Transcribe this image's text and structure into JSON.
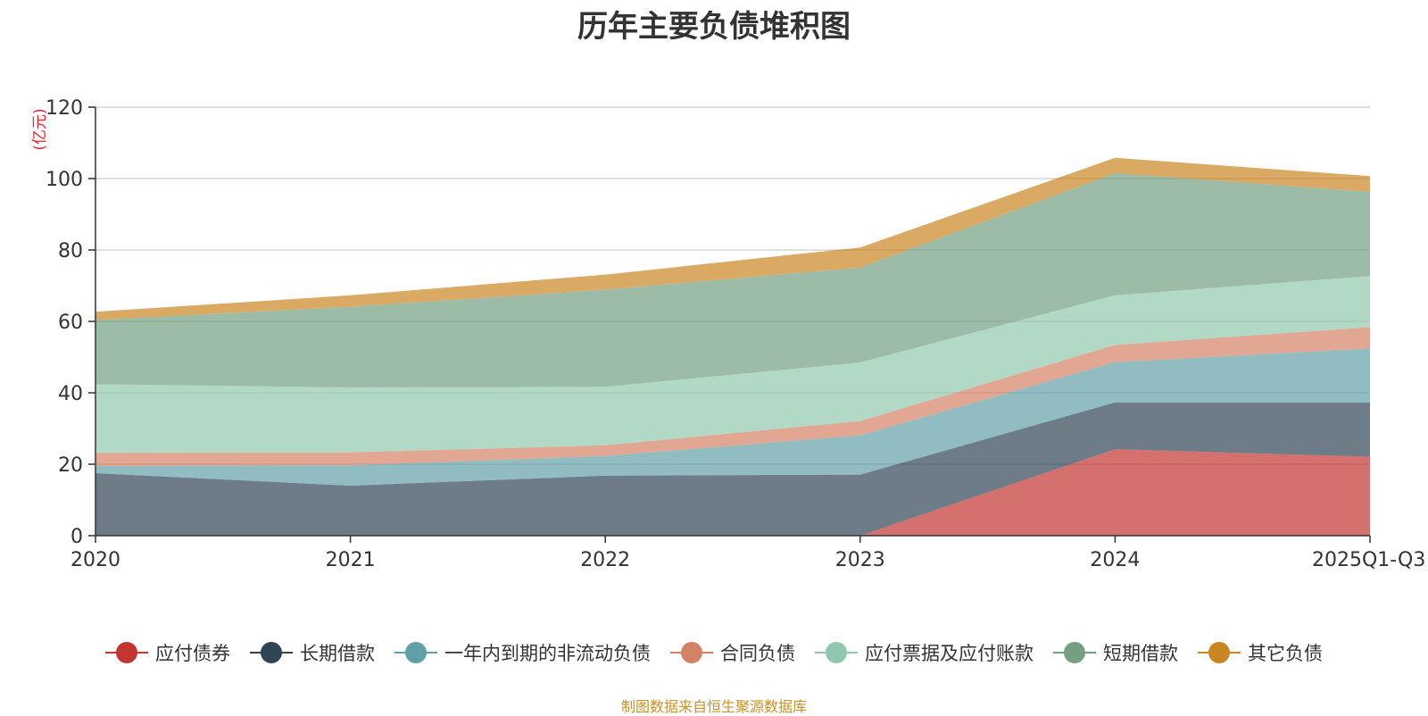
{
  "chart_data": {
    "type": "area",
    "stacked": true,
    "title": "历年主要负债堆积图",
    "ylabel": "(亿元)",
    "ylim": [
      0,
      120
    ],
    "yticks": [
      0,
      20,
      40,
      60,
      80,
      100,
      120
    ],
    "categories": [
      "2020",
      "2021",
      "2022",
      "2023",
      "2024",
      "2025Q1-Q3"
    ],
    "series": [
      {
        "name": "应付债券",
        "color": "#c23531",
        "values": [
          0,
          0,
          0,
          0,
          24.2,
          22.1
        ]
      },
      {
        "name": "长期借款",
        "color": "#2f4554",
        "values": [
          17.5,
          14.0,
          16.8,
          17.1,
          13.1,
          15.2
        ]
      },
      {
        "name": "一年内到期的非流动负债",
        "color": "#61a0a8",
        "values": [
          2.0,
          5.7,
          5.5,
          11.0,
          11.3,
          15.1
        ]
      },
      {
        "name": "合同负债",
        "color": "#d48265",
        "values": [
          3.7,
          3.6,
          3.0,
          4.0,
          4.8,
          6.0
        ]
      },
      {
        "name": "应付票据及应付账款",
        "color": "#91c7ae",
        "values": [
          19.2,
          18.2,
          16.4,
          16.4,
          13.9,
          14.3
        ]
      },
      {
        "name": "短期借款",
        "color": "#749f83",
        "values": [
          18.0,
          22.6,
          27.2,
          26.6,
          34.2,
          23.6
        ]
      },
      {
        "name": "其它负债",
        "color": "#ca8622",
        "values": [
          2.3,
          3.2,
          4.2,
          5.6,
          4.3,
          4.4
        ]
      }
    ],
    "source_note": "制图数据来自恒生聚源数据库"
  }
}
